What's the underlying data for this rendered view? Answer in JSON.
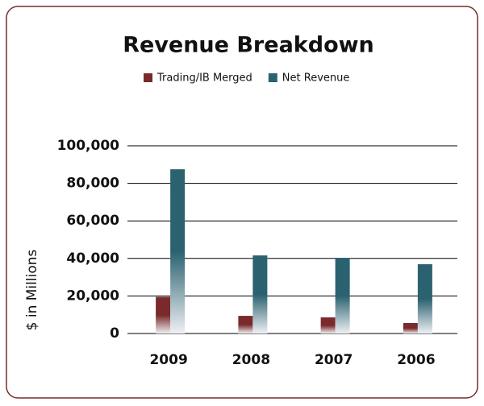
{
  "chart_data": {
    "type": "bar",
    "title": "Revenue Breakdown",
    "y_label": "$ in Millions",
    "categories": [
      "2009",
      "2008",
      "2007",
      "2006"
    ],
    "series": [
      {
        "name": "Trading/IB Merged",
        "color": "#7a2a2a",
        "values": [
          19500,
          9400,
          8600,
          5600
        ]
      },
      {
        "name": "Net Revenue",
        "color": "#2b6270",
        "values": [
          87500,
          41600,
          40300,
          36900
        ]
      }
    ],
    "ylim": [
      0,
      100000
    ],
    "yticks": [
      0,
      {
        "value": 20000,
        "label": "20,000"
      },
      {
        "value": 40000,
        "label": "40,000"
      },
      {
        "value": 60000,
        "label": "60,000"
      },
      {
        "value": 80000,
        "label": "80,000"
      },
      {
        "value": 100000,
        "label": "100,000"
      }
    ],
    "grid": true,
    "legend": "top"
  }
}
